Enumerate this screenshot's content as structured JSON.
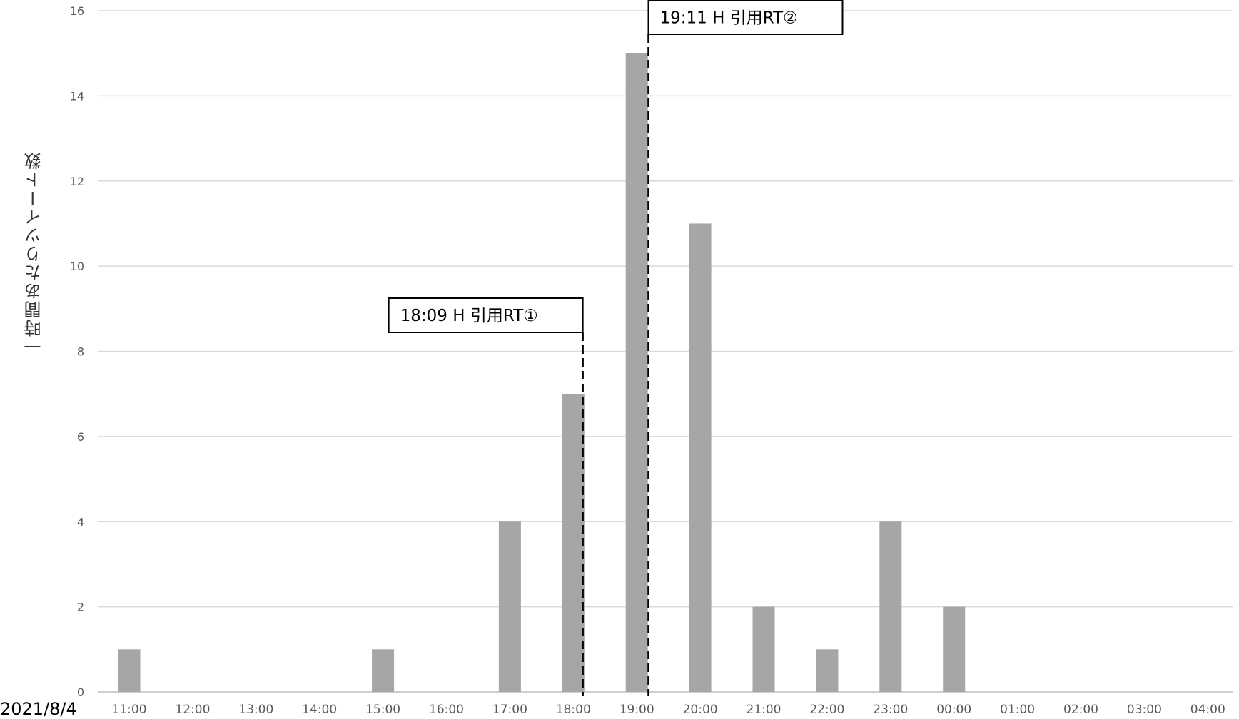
{
  "chart_data": {
    "type": "bar",
    "title": "",
    "xlabel": "",
    "ylabel": "一時間あたりツイート数",
    "date_label": "2021/8/4",
    "categories": [
      "11:00",
      "12:00",
      "13:00",
      "14:00",
      "15:00",
      "16:00",
      "17:00",
      "18:00",
      "19:00",
      "20:00",
      "21:00",
      "22:00",
      "23:00",
      "00:00",
      "01:00",
      "02:00",
      "03:00",
      "04:00"
    ],
    "values": [
      1,
      0,
      0,
      0,
      1,
      0,
      4,
      7,
      15,
      11,
      2,
      1,
      4,
      2,
      0,
      0,
      0,
      0
    ],
    "yticks": [
      "0",
      "2",
      "4",
      "6",
      "8",
      "10",
      "12",
      "14",
      "16"
    ],
    "ylim": [
      0,
      16
    ],
    "grid": true,
    "bar_color": "#a6a6a6",
    "annotations": [
      {
        "label": "18:09 H 引用RT①",
        "time": "18:09"
      },
      {
        "label": "19:11 H 引用RT②",
        "time": "19:11"
      }
    ]
  }
}
